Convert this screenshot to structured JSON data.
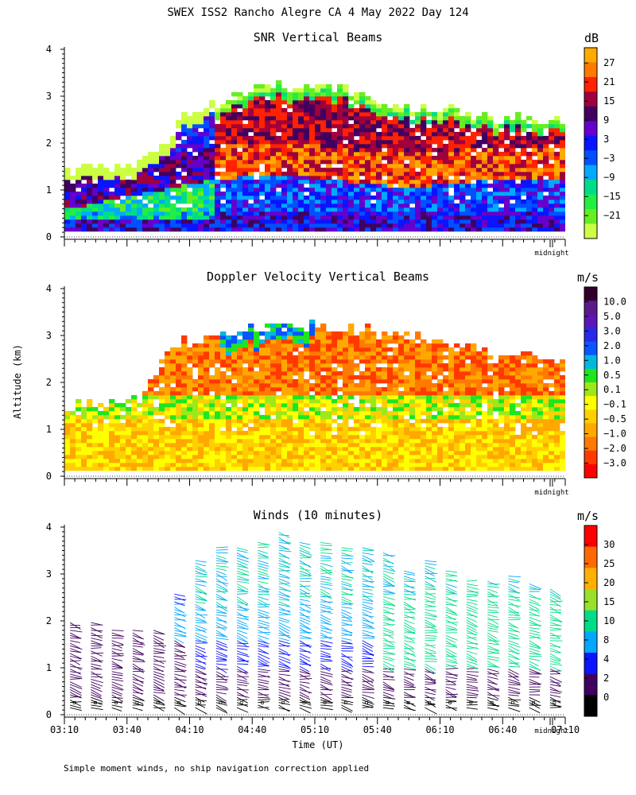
{
  "page": {
    "title": "SWEX ISS2 Rancho Alegre CA   4 May 2022 Day 124",
    "y_axis_label": "Altitude (km)",
    "x_axis_label": "Time (UT)",
    "footnote": "Simple moment winds, no ship navigation correction applied",
    "midnight_label": "midnight"
  },
  "chart_data": [
    {
      "type": "heatmap",
      "title": "SNR Vertical Beams",
      "ylabel": "Altitude (km)",
      "ylim": [
        0,
        4
      ],
      "yticks": [
        "0",
        "1",
        "2",
        "3",
        "4"
      ],
      "colorbar_unit": "dB",
      "colorbar_labels": [
        "27",
        "21",
        "15",
        "9",
        "3",
        "−3",
        "−9",
        "−15",
        "−21"
      ],
      "colorbar_colors": [
        "#ffaa00",
        "#ff7a00",
        "#ff2200",
        "#a0003c",
        "#400060",
        "#6600cc",
        "#0a14ff",
        "#0050ff",
        "#00aaff",
        "#00dd88",
        "#22ee44",
        "#66ee22",
        "#ccff44"
      ],
      "cloud_top_km": [
        1.4,
        1.5,
        1.5,
        1.6,
        1.8,
        2.6,
        2.8,
        3.0,
        3.1,
        3.2,
        3.2,
        3.2,
        3.0,
        2.9,
        2.8,
        2.7,
        2.7,
        2.6,
        2.5,
        2.5,
        2.4,
        2.4
      ],
      "bright_band_km": [
        0.9,
        1.1,
        1.3,
        1.5,
        1.6,
        1.6,
        1.5,
        1.4,
        1.4,
        1.5,
        1.5,
        1.5
      ]
    },
    {
      "type": "heatmap",
      "title": "Doppler Velocity Vertical Beams",
      "ylabel": "Altitude (km)",
      "ylim": [
        0,
        4
      ],
      "yticks": [
        "0",
        "1",
        "2",
        "3",
        "4"
      ],
      "colorbar_unit": "m/s",
      "colorbar_labels": [
        "10.0",
        "5.0",
        "3.0",
        "2.0",
        "1.0",
        "0.5",
        "0.1",
        "−0.1",
        "−0.5",
        "−1.0",
        "−2.0",
        "−3.0"
      ],
      "colorbar_colors": [
        "#30002a",
        "#5a1a8a",
        "#5a16b6",
        "#2a28e8",
        "#0a55ff",
        "#00b7e0",
        "#1ee61e",
        "#9ee81a",
        "#ffff00",
        "#ffd000",
        "#ffa800",
        "#ff7a00",
        "#ff3a00",
        "#ff0000"
      ],
      "echo_top_km": [
        1.5,
        1.5,
        1.6,
        2.8,
        2.9,
        3.1,
        3.2,
        3.2,
        3.1,
        3.0,
        2.9,
        2.8,
        2.6,
        2.5,
        2.4
      ]
    },
    {
      "type": "scatter",
      "title": "Winds (10 minutes)",
      "ylabel": "Altitude (km)",
      "xlabel": "Time (UT)",
      "ylim": [
        0,
        4
      ],
      "yticks": [
        "0",
        "1",
        "2",
        "3",
        "4"
      ],
      "xticks": [
        "03:10",
        "03:40",
        "04:10",
        "04:40",
        "05:10",
        "05:40",
        "06:10",
        "06:40",
        "07:10"
      ],
      "xlim_minutes": [
        190,
        430
      ],
      "colorbar_unit": "m/s",
      "colorbar_labels": [
        "30",
        "25",
        "20",
        "15",
        "10",
        "8",
        "4",
        "2",
        "0"
      ],
      "colorbar_colors": [
        "#ff0000",
        "#ff6a00",
        "#ffb000",
        "#99e02a",
        "#00dd88",
        "#00a8ff",
        "#0a14ff",
        "#400060",
        "#000000"
      ],
      "profiles_minutes": [
        195,
        205,
        215,
        225,
        235,
        245,
        255,
        265,
        275,
        285,
        295,
        305,
        315,
        325,
        335,
        345,
        355,
        365,
        375,
        385,
        395,
        405,
        415,
        425
      ],
      "profile_top_km": [
        2.0,
        2.0,
        1.8,
        1.8,
        1.8,
        2.6,
        3.3,
        3.6,
        3.6,
        3.7,
        3.9,
        3.7,
        3.7,
        3.6,
        3.6,
        3.5,
        3.1,
        3.3,
        3.1,
        2.9,
        2.9,
        3.0,
        2.8,
        2.7
      ]
    }
  ]
}
